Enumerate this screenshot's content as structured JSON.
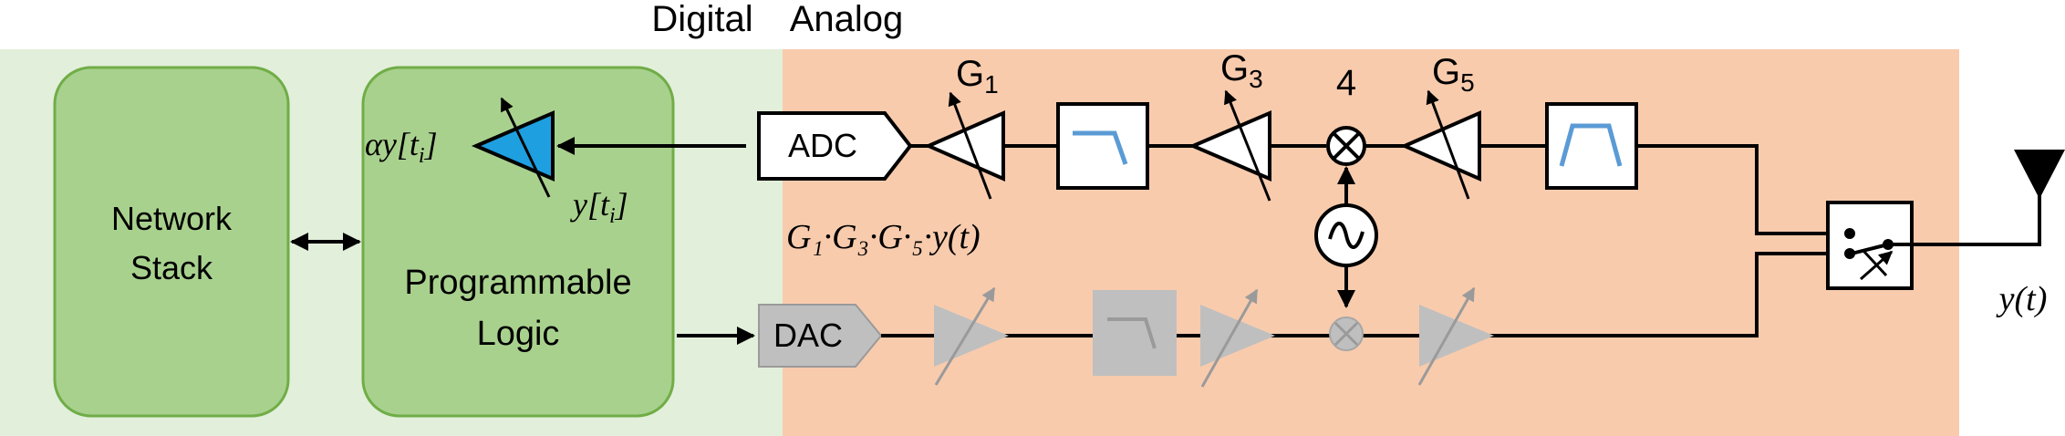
{
  "domains": {
    "digital_label": "Digital",
    "analog_label": "Analog"
  },
  "blocks": {
    "network_stack_line1": "Network",
    "network_stack_line2": "Stack",
    "prog_logic_line1": "Programmable",
    "prog_logic_line2": "Logic",
    "adc": "ADC",
    "dac": "DAC"
  },
  "gains": {
    "g1": "G",
    "g1_sub": "1",
    "g3": "G",
    "g3_sub": "3",
    "g5": "G",
    "g5_sub": "5",
    "mixer_number": "4"
  },
  "math": {
    "alpha_y_main": "αy[t",
    "alpha_y_sub": "i",
    "alpha_y_close": "]",
    "y_main": "y[t",
    "y_sub": "i",
    "y_close": "]",
    "gain_product": "G₁·G₃·G·₅·y(t)",
    "output": "y(t)"
  },
  "colors": {
    "digital_bg": "#e2efda",
    "analog_bg": "#f8cbad",
    "block_green": "#a9d18e",
    "block_green_border": "#70ad47",
    "amp_blue": "#1e9fe0",
    "filter_blue": "#5b9bd5",
    "gray_fill": "#bfbfbf",
    "gray_line": "#8c8c8c"
  }
}
